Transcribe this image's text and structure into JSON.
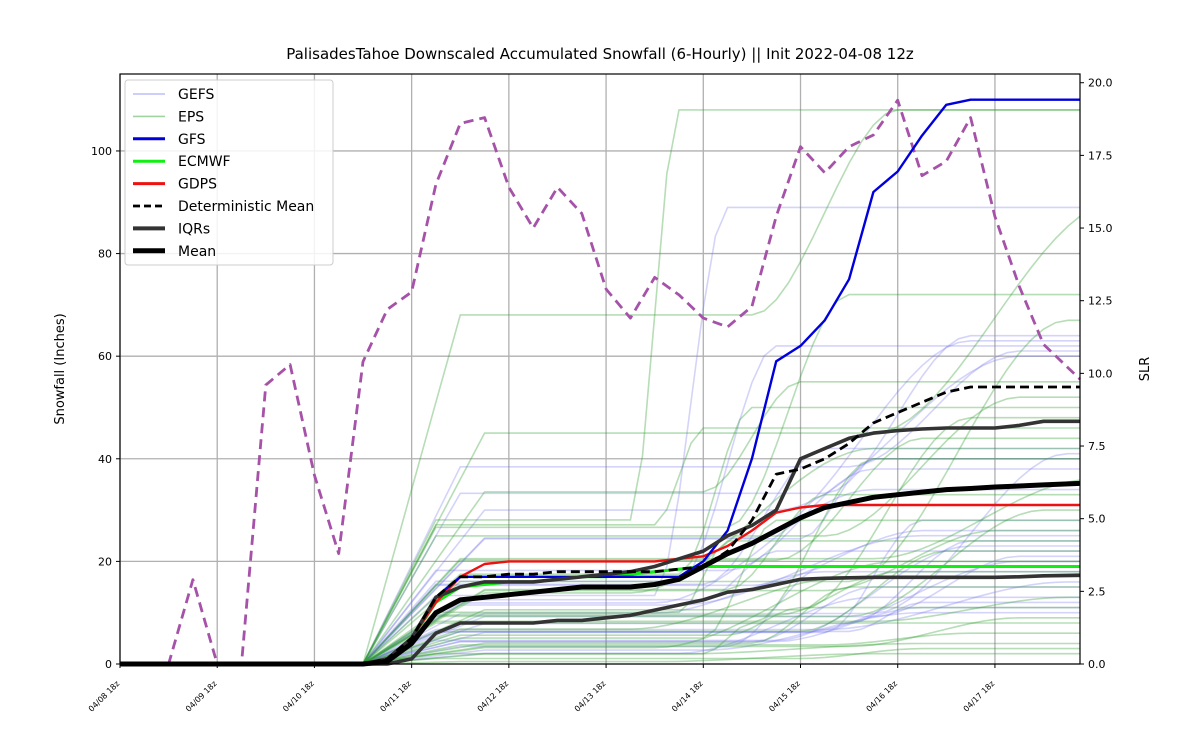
{
  "chart_data": {
    "type": "line",
    "title": "PalisadesTahoe Downscaled Accumulated Snowfall (6-Hourly) || Init 2022-04-08 12z",
    "ylabel": "Snowfall (Inches)",
    "y2label": "SLR",
    "ylim": [
      0,
      115
    ],
    "y2lim": [
      0,
      20.3
    ],
    "xlim": [
      0,
      39.5
    ],
    "xticks": [
      0,
      4,
      8,
      12,
      16,
      20,
      24,
      28,
      32,
      36
    ],
    "xtick_labels": [
      "04/08 18z",
      "04/09 18z",
      "04/10 18z",
      "04/11 18z",
      "04/12 18z",
      "04/13 18z",
      "04/14 18z",
      "04/15 18z",
      "04/16 18z",
      "04/17 18z"
    ],
    "yticks": [
      0,
      20,
      40,
      60,
      80,
      100
    ],
    "y2ticks": [
      0.0,
      2.5,
      5.0,
      7.5,
      10.0,
      12.5,
      15.0,
      17.5,
      20.0
    ],
    "grid": true,
    "legend_position": "top-left",
    "legend": [
      {
        "label": "GEFS",
        "color": "#6f6ff0",
        "style": "thin-faint"
      },
      {
        "label": "EPS",
        "color": "#2e9e2e",
        "style": "thin-faint"
      },
      {
        "label": "GFS",
        "color": "#0000dd",
        "style": "solid"
      },
      {
        "label": "ECMWF",
        "color": "#11ee11",
        "style": "solid"
      },
      {
        "label": "GDPS",
        "color": "#ee1111",
        "style": "solid"
      },
      {
        "label": "Deterministic Mean",
        "color": "#000000",
        "style": "dashed"
      },
      {
        "label": "IQRs",
        "color": "#333333",
        "style": "thick"
      },
      {
        "label": "Mean",
        "color": "#000000",
        "style": "thickest"
      }
    ],
    "series": [
      {
        "name": "GFS",
        "color": "#0000dd",
        "x": [
          0,
          10,
          11,
          12,
          13,
          14,
          14.5,
          15,
          16,
          17,
          18,
          19,
          20,
          21,
          22,
          23,
          24,
          25,
          26,
          27,
          28,
          29,
          30,
          31,
          32,
          33,
          34,
          35,
          36,
          37,
          38,
          39.5
        ],
        "y": [
          0,
          0,
          1,
          5,
          13,
          17,
          17,
          17,
          17,
          17,
          17,
          17,
          17,
          17,
          17,
          17,
          20,
          26,
          40,
          59,
          62,
          67,
          75,
          92,
          96,
          103,
          109,
          110,
          110,
          110,
          110,
          110
        ]
      },
      {
        "name": "ECMWF",
        "color": "#11ee11",
        "x": [
          0,
          10,
          11,
          12,
          13,
          14,
          15,
          16,
          17,
          18,
          19,
          20,
          21,
          22,
          23,
          24,
          26,
          28,
          30,
          32,
          34,
          36,
          39.5
        ],
        "y": [
          0,
          0,
          1,
          5,
          12,
          15,
          15.5,
          16,
          16,
          16.5,
          17,
          17,
          17.5,
          18,
          18.5,
          19,
          19,
          19,
          19,
          19,
          19,
          19,
          19
        ]
      },
      {
        "name": "GDPS",
        "color": "#ee1111",
        "x": [
          0,
          10,
          11,
          12,
          13,
          14,
          15,
          16,
          17,
          18,
          19,
          20,
          21,
          22,
          23,
          24,
          25,
          26,
          27,
          28,
          29,
          30,
          32,
          34,
          36,
          39.5
        ],
        "y": [
          0,
          0,
          1,
          5,
          12,
          17,
          19.5,
          20,
          20,
          20,
          20,
          20,
          20,
          20,
          20.5,
          21,
          23,
          26,
          29.5,
          30.5,
          31,
          31,
          31,
          31,
          31,
          31
        ]
      },
      {
        "name": "Deterministic Mean",
        "color": "#000000",
        "x": [
          0,
          10,
          11,
          12,
          13,
          14,
          15,
          16,
          17,
          18,
          19,
          20,
          21,
          22,
          23,
          24,
          25,
          26,
          27,
          28,
          29,
          30,
          31,
          32,
          33,
          34,
          35,
          36,
          37,
          38,
          39.5
        ],
        "y": [
          0,
          0,
          1,
          5,
          13,
          17,
          17,
          17.5,
          17.5,
          18,
          18,
          18,
          18,
          18,
          18.5,
          19,
          22,
          28,
          37,
          38,
          40,
          43,
          47,
          49,
          51,
          53,
          54,
          54,
          54,
          54,
          54
        ]
      },
      {
        "name": "Mean",
        "color": "#000000",
        "x": [
          0,
          10,
          11,
          12,
          13,
          14,
          15,
          16,
          17,
          18,
          19,
          20,
          21,
          22,
          23,
          24,
          25,
          26,
          27,
          28,
          29,
          30,
          31,
          32,
          33,
          34,
          35,
          36,
          37,
          38,
          39.5
        ],
        "y": [
          0,
          0,
          0.5,
          4,
          10,
          12.5,
          13,
          13.5,
          14,
          14.5,
          15,
          15,
          15,
          15.5,
          16.5,
          19,
          21.5,
          23.5,
          26,
          28.5,
          30.5,
          31.5,
          32.5,
          33,
          33.5,
          34,
          34.2,
          34.5,
          34.7,
          34.9,
          35.2
        ]
      },
      {
        "name": "IQR upper",
        "color": "#333333",
        "x": [
          0,
          10,
          11,
          12,
          13,
          14,
          15,
          16,
          17,
          18,
          19,
          20,
          21,
          22,
          23,
          24,
          25,
          26,
          27,
          28,
          29,
          30,
          31,
          32,
          33,
          34,
          35,
          36,
          37,
          38,
          39.5
        ],
        "y": [
          0,
          0,
          1,
          5,
          13,
          15,
          16,
          16,
          16,
          16.5,
          17,
          17.5,
          18,
          19,
          20.5,
          22,
          25,
          27,
          30,
          40,
          42,
          44,
          45,
          45.5,
          45.8,
          46,
          46,
          46,
          46.5,
          47.3,
          47.3
        ]
      },
      {
        "name": "IQR lower",
        "color": "#333333",
        "x": [
          0,
          10,
          11,
          12,
          13,
          14,
          15,
          16,
          17,
          18,
          19,
          20,
          21,
          22,
          23,
          24,
          25,
          26,
          27,
          28,
          29,
          30,
          31,
          32,
          33,
          34,
          35,
          36,
          37,
          38,
          39.5
        ],
        "y": [
          0,
          0,
          0,
          1,
          6,
          8,
          8,
          8,
          8,
          8.5,
          8.5,
          9,
          9.5,
          10.5,
          11.5,
          12.5,
          14,
          14.5,
          15.5,
          16.5,
          16.7,
          16.8,
          16.9,
          16.9,
          16.9,
          16.9,
          16.9,
          16.9,
          17,
          17.2,
          17.3
        ]
      },
      {
        "name": "SLR",
        "color": "#a552a8",
        "axis": "right",
        "x": [
          0,
          2,
          3,
          4,
          5,
          6,
          7,
          8,
          9,
          10,
          11,
          12,
          13,
          14,
          15,
          16,
          17,
          18,
          19,
          20,
          21,
          22,
          23,
          24,
          25,
          26,
          27,
          28,
          29,
          30,
          31,
          32,
          33,
          34,
          35,
          36,
          37,
          38,
          39.5
        ],
        "y": [
          0,
          0,
          2.9,
          0,
          0,
          9.6,
          10.3,
          6.5,
          3.8,
          10.4,
          12.2,
          12.8,
          16.5,
          18.6,
          18.8,
          16.4,
          15.0,
          16.4,
          15.5,
          12.9,
          11.9,
          13.3,
          12.7,
          11.9,
          11.6,
          12.3,
          15.4,
          17.8,
          16.9,
          17.8,
          18.2,
          19.4,
          16.8,
          17.3,
          18.8,
          15.4,
          13.0,
          11.0,
          9.8
        ]
      }
    ],
    "gefs_members_final": [
      89,
      64,
      63,
      62,
      61,
      60,
      42,
      41,
      40,
      38,
      34,
      28,
      26,
      25,
      24,
      23,
      22,
      21,
      20,
      19,
      18,
      16,
      15,
      13,
      12,
      11,
      10
    ],
    "eps_members_final": [
      108,
      108,
      90,
      72,
      67,
      55,
      52,
      50,
      48,
      46,
      44,
      42,
      40,
      36,
      33,
      30,
      28,
      26,
      24,
      22,
      20,
      18,
      17,
      15,
      13,
      11,
      9,
      8,
      6,
      4,
      3,
      2
    ]
  }
}
